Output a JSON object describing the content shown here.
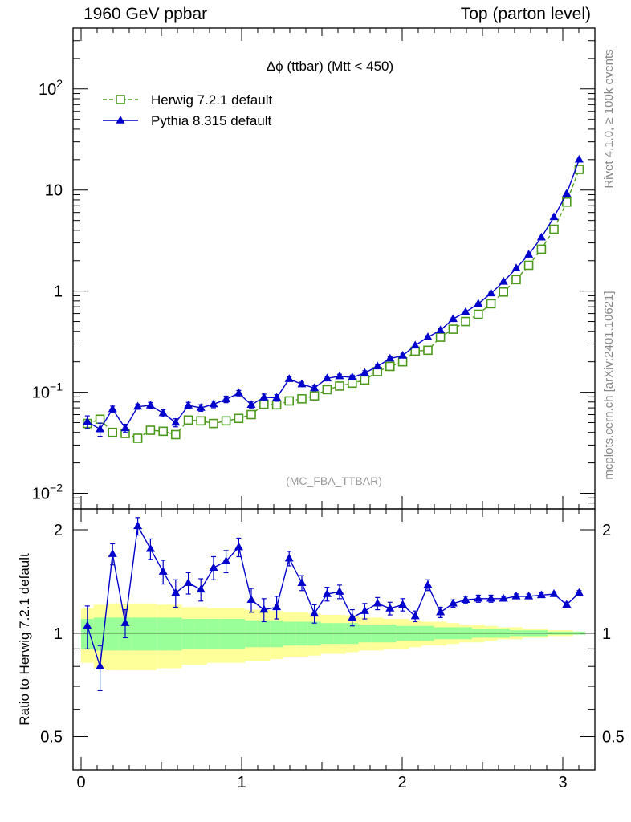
{
  "header": {
    "left": "1960 GeV ppbar",
    "right": "Top (parton level)"
  },
  "side_labels": {
    "rivet": "Rivet 4.1.0, ≥ 100k events",
    "mcplots": "mcplots.cern.ch [arXiv:2401.10621]"
  },
  "chart_data": {
    "type": "line",
    "title": "Δϕ (ttbar) (Mtt < 450)",
    "watermark": "(MC_FBA_TTBAR)",
    "xlabel": "",
    "ylabel": "",
    "xlim": [
      -0.05,
      3.2
    ],
    "ylim": [
      0.007,
      400
    ],
    "yscale": "log",
    "x_ticks": [
      "0",
      "1",
      "2",
      "3"
    ],
    "y_ticks": [
      "10^-2",
      "10^-1",
      "1",
      "10",
      "10^2"
    ],
    "legend": {
      "placement": "top-left"
    },
    "x": [
      0.039,
      0.118,
      0.196,
      0.275,
      0.353,
      0.432,
      0.511,
      0.589,
      0.668,
      0.746,
      0.825,
      0.903,
      0.982,
      1.06,
      1.139,
      1.218,
      1.296,
      1.375,
      1.453,
      1.532,
      1.61,
      1.689,
      1.767,
      1.846,
      1.924,
      2.003,
      2.081,
      2.16,
      2.238,
      2.317,
      2.395,
      2.474,
      2.553,
      2.631,
      2.71,
      2.788,
      2.867,
      2.945,
      3.024,
      3.102
    ],
    "series": [
      {
        "name": "Herwig 7.2.1 default",
        "color": "#4c9a1c",
        "marker": "open-square",
        "linestyle": "dashed",
        "values": [
          0.049,
          0.054,
          0.04,
          0.039,
          0.035,
          0.042,
          0.041,
          0.038,
          0.053,
          0.052,
          0.049,
          0.052,
          0.055,
          0.06,
          0.076,
          0.075,
          0.082,
          0.086,
          0.092,
          0.106,
          0.115,
          0.123,
          0.132,
          0.16,
          0.18,
          0.2,
          0.255,
          0.26,
          0.35,
          0.42,
          0.5,
          0.59,
          0.75,
          0.98,
          1.3,
          1.8,
          2.6,
          4.1,
          7.6,
          16.0
        ]
      },
      {
        "name": "Pythia 8.315 default",
        "color": "#0000cc",
        "marker": "filled-triangle",
        "linestyle": "solid",
        "values": [
          0.051,
          0.043,
          0.068,
          0.044,
          0.072,
          0.074,
          0.062,
          0.05,
          0.074,
          0.07,
          0.076,
          0.085,
          0.098,
          0.075,
          0.089,
          0.088,
          0.135,
          0.12,
          0.11,
          0.137,
          0.144,
          0.14,
          0.155,
          0.18,
          0.215,
          0.23,
          0.29,
          0.35,
          0.41,
          0.53,
          0.62,
          0.75,
          0.95,
          1.24,
          1.68,
          2.3,
          3.4,
          5.4,
          9.2,
          20.0
        ]
      }
    ],
    "ratio": {
      "ylabel": "Ratio to Herwig 7.2.1 default",
      "ylim": [
        0.4,
        2.3
      ],
      "y_ticks": [
        "0.5",
        "1",
        "2"
      ],
      "reference_line": 1,
      "values": [
        1.05,
        0.8,
        1.7,
        1.07,
        2.05,
        1.76,
        1.51,
        1.31,
        1.4,
        1.34,
        1.55,
        1.62,
        1.78,
        1.25,
        1.17,
        1.19,
        1.65,
        1.4,
        1.14,
        1.3,
        1.32,
        1.11,
        1.16,
        1.22,
        1.18,
        1.21,
        1.12,
        1.38,
        1.15,
        1.22,
        1.25,
        1.26,
        1.26,
        1.26,
        1.28,
        1.28,
        1.29,
        1.3,
        1.21,
        1.31
      ],
      "errors": [
        0.15,
        0.12,
        0.12,
        0.1,
        0.12,
        0.12,
        0.12,
        0.12,
        0.1,
        0.1,
        0.12,
        0.12,
        0.11,
        0.1,
        0.09,
        0.09,
        0.08,
        0.07,
        0.07,
        0.06,
        0.06,
        0.06,
        0.06,
        0.05,
        0.05,
        0.05,
        0.04,
        0.05,
        0.04,
        0.03,
        0.03,
        0.03,
        0.03,
        0.02,
        0.02,
        0.02,
        0.02,
        0.02,
        0.02,
        0.02
      ],
      "band_green_halfwidth": [
        0.1,
        0.11,
        0.11,
        0.11,
        0.11,
        0.11,
        0.11,
        0.11,
        0.1,
        0.1,
        0.1,
        0.1,
        0.1,
        0.09,
        0.09,
        0.09,
        0.08,
        0.08,
        0.08,
        0.07,
        0.07,
        0.07,
        0.06,
        0.06,
        0.06,
        0.05,
        0.05,
        0.05,
        0.04,
        0.04,
        0.04,
        0.03,
        0.03,
        0.03,
        0.02,
        0.02,
        0.02,
        0.01,
        0.01,
        0.01
      ],
      "band_yellow_halfwidth": [
        0.18,
        0.21,
        0.22,
        0.22,
        0.22,
        0.22,
        0.21,
        0.21,
        0.19,
        0.19,
        0.18,
        0.18,
        0.18,
        0.17,
        0.17,
        0.16,
        0.15,
        0.15,
        0.14,
        0.13,
        0.13,
        0.12,
        0.11,
        0.11,
        0.1,
        0.1,
        0.09,
        0.08,
        0.08,
        0.07,
        0.06,
        0.06,
        0.05,
        0.04,
        0.04,
        0.03,
        0.03,
        0.02,
        0.02,
        0.01
      ]
    }
  }
}
